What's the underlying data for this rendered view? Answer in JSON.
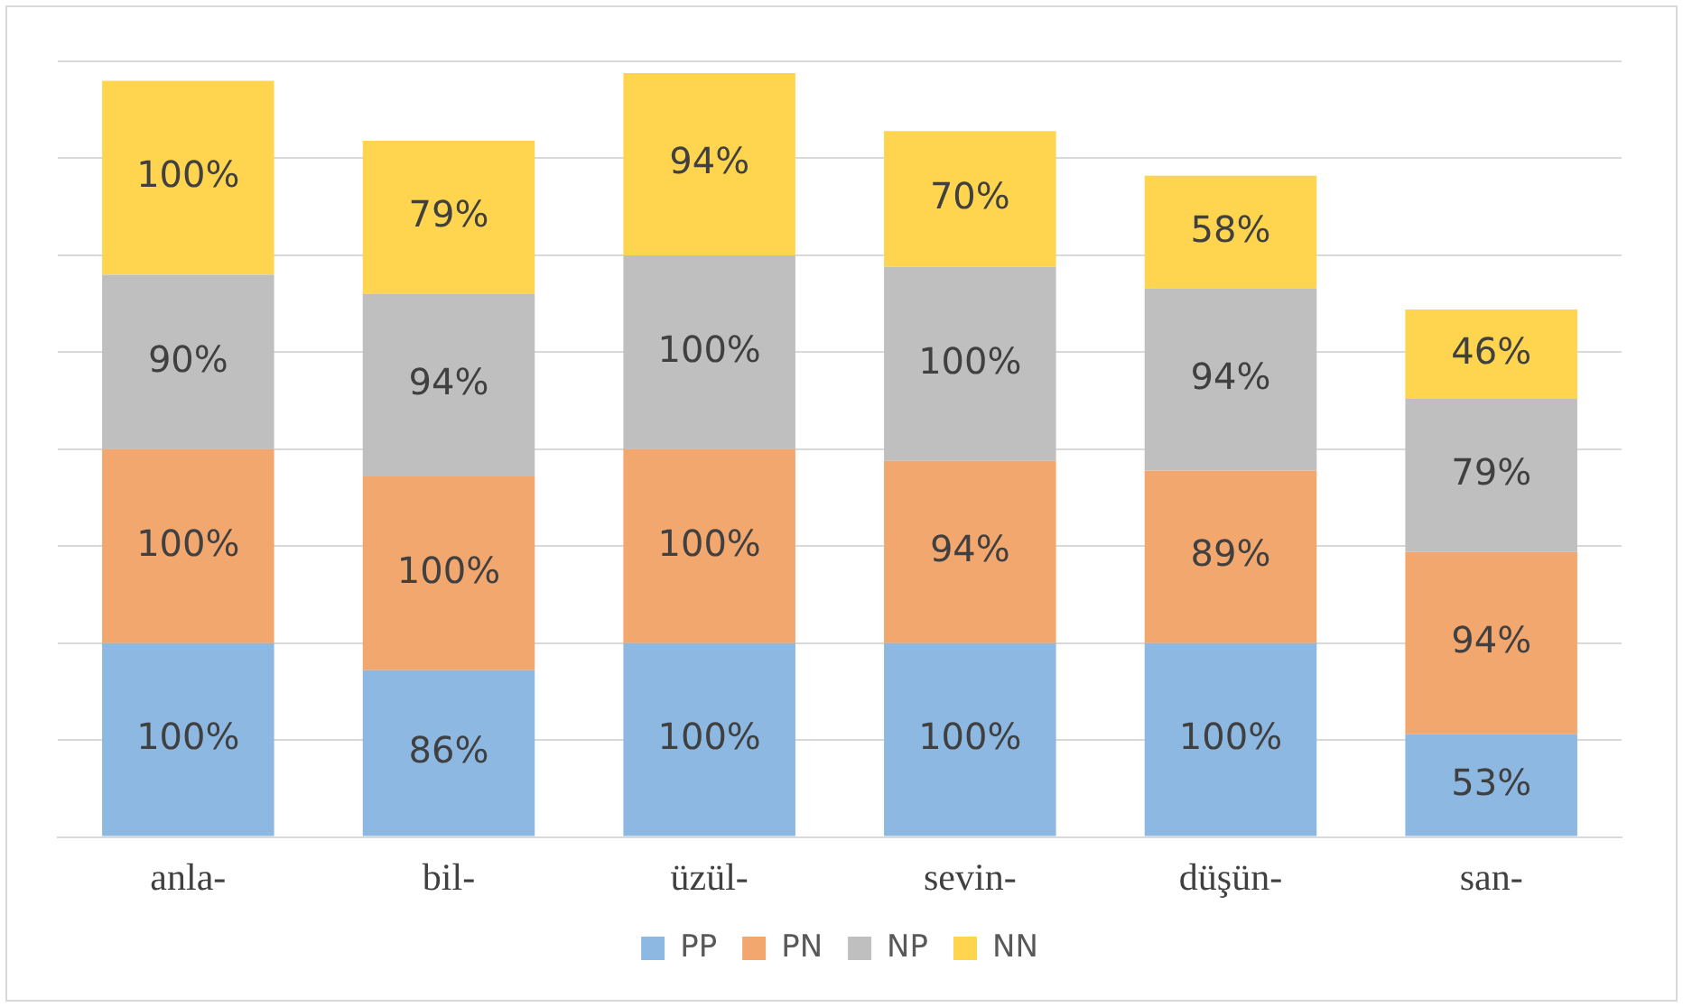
{
  "chart_data": {
    "type": "bar",
    "stacked": true,
    "categories": [
      "anla-",
      "bil-",
      "üzül-",
      "sevin-",
      "düşün-",
      "san-"
    ],
    "series": [
      {
        "name": "PP",
        "color": "#8db8e2",
        "values": [
          100,
          86,
          100,
          100,
          100,
          53
        ],
        "value_labels": [
          "100%",
          "86%",
          "100%",
          "100%",
          "100%",
          "53%"
        ]
      },
      {
        "name": "PN",
        "color": "#f2a76f",
        "values": [
          100,
          100,
          100,
          94,
          89,
          94
        ],
        "value_labels": [
          "100%",
          "100%",
          "100%",
          "94%",
          "89%",
          "94%"
        ]
      },
      {
        "name": "NP",
        "color": "#bfbfbf",
        "values": [
          90,
          94,
          100,
          100,
          94,
          79
        ],
        "value_labels": [
          "90%",
          "94%",
          "100%",
          "100%",
          "94%",
          "79%"
        ]
      },
      {
        "name": "NN",
        "color": "#ffd54f",
        "values": [
          100,
          79,
          94,
          70,
          58,
          46
        ],
        "value_labels": [
          "100%",
          "79%",
          "94%",
          "70%",
          "58%",
          "46%"
        ]
      }
    ],
    "yticks": [
      {
        "value": 0,
        "label": null
      },
      {
        "value": 50,
        "label": null
      },
      {
        "value": 100,
        "label": null
      },
      {
        "value": 150,
        "label": null
      },
      {
        "value": 200,
        "label": null
      },
      {
        "value": 250,
        "label": null
      },
      {
        "value": 300,
        "label": null
      },
      {
        "value": 350,
        "label": null
      },
      {
        "value": 400,
        "label": null
      }
    ],
    "grid": "y",
    "legend": "bottom"
  }
}
